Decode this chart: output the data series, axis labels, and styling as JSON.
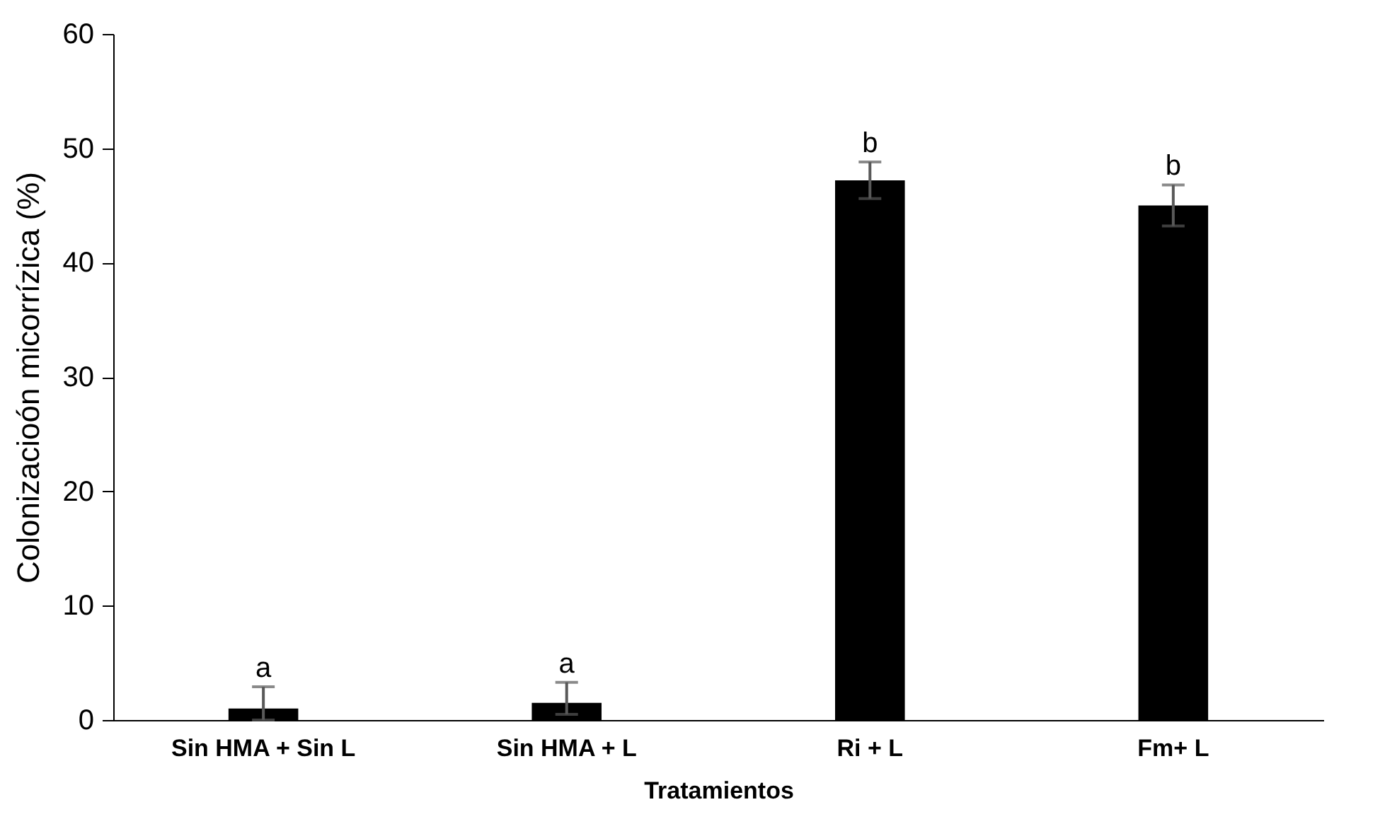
{
  "chart_data": {
    "type": "bar",
    "xlabel": "Tratamientos",
    "ylabel": "Colonizacioón micorrízica (%)",
    "categories": [
      "Sin HMA + Sin L",
      "Sin HMA + L",
      "Ri + L",
      "Fm+ L"
    ],
    "values": [
      1.0,
      1.5,
      47.2,
      45.0
    ],
    "errors": [
      [
        0.0,
        2.9
      ],
      [
        0.5,
        3.3
      ],
      [
        45.6,
        48.8
      ],
      [
        43.2,
        46.8
      ]
    ],
    "color": "#000000",
    "ylim": [
      0,
      60
    ],
    "yticks": [
      0,
      10,
      20,
      30,
      40,
      50,
      60
    ],
    "grid": false,
    "annotations": [
      {
        "text": "a",
        "x": "Sin HMA + Sin L",
        "y": 2.9
      },
      {
        "text": "a",
        "x": "Sin HMA + L",
        "y": 3.3
      },
      {
        "text": "b",
        "x": "Ri + L",
        "y": 48.8
      },
      {
        "text": "b",
        "x": "Fm+ L",
        "y": 46.8
      }
    ]
  }
}
